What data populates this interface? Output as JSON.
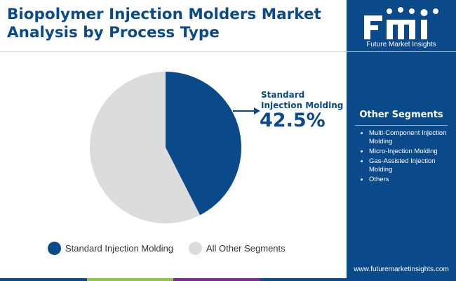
{
  "header": {
    "title": "Biopolymer Injection Molders Market Analysis by Process Type"
  },
  "brand": {
    "logo_icon": "fmi-logo-icon",
    "logo_letters": "fmi",
    "name": "Future Market Insights",
    "website": "www.futuremarketinsights.com"
  },
  "colors": {
    "primary": "#0b4a8a",
    "secondary": "#dcdcdc",
    "white": "#ffffff",
    "bottom_bar": [
      "#0b4a8a",
      "#8dc63f",
      "#7b2a8e",
      "#0b4a8a"
    ]
  },
  "callout": {
    "label": "Standard Injection Molding",
    "value": "42.5%"
  },
  "sidebar": {
    "title": "Other Segments",
    "items": [
      "Multi-Component Injection Molding",
      "Micro-Injection Molding",
      "Gas-Assisted Injection Molding",
      "Others"
    ]
  },
  "chart_data": {
    "type": "pie",
    "title": "Biopolymer Injection Molders Market Analysis by Process Type",
    "series": [
      {
        "name": "Standard Injection Molding",
        "value": 42.5,
        "color": "#0b4a8a"
      },
      {
        "name": "All Other Segments",
        "value": 57.5,
        "color": "#dcdcdc"
      }
    ],
    "legend_position": "bottom",
    "start_angle_deg": 0,
    "direction": "clockwise"
  }
}
